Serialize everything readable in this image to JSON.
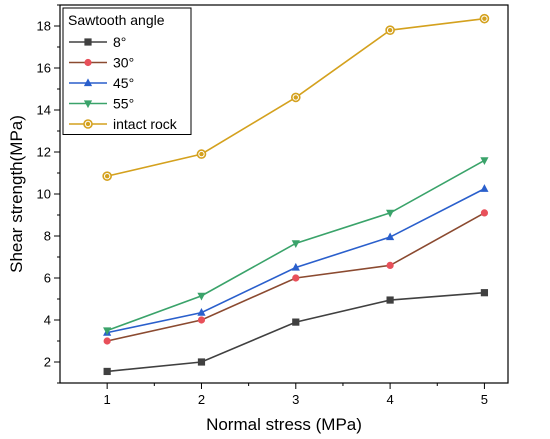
{
  "chart_data": {
    "type": "line",
    "xlabel": "Normal stress (MPa)",
    "ylabel": "Shear strength(MPa)",
    "x": [
      1,
      2,
      3,
      4,
      5
    ],
    "xlim": [
      0.5,
      5.25
    ],
    "ylim": [
      1,
      19
    ],
    "x_ticks": [
      1,
      2,
      3,
      4,
      5
    ],
    "y_ticks": [
      2,
      4,
      6,
      8,
      10,
      12,
      14,
      16,
      18
    ],
    "grid": false,
    "legend_title": "Sawtooth angle",
    "legend_position": "top-left",
    "series": [
      {
        "name": "8°",
        "color": "#404040",
        "marker": "square",
        "values": [
          1.55,
          2.0,
          3.9,
          4.95,
          5.3
        ]
      },
      {
        "name": "30°",
        "color": "#8b4a30",
        "marker_color": "#e8505a",
        "marker": "circle",
        "values": [
          3.0,
          4.0,
          6.0,
          6.6,
          9.1
        ]
      },
      {
        "name": "45°",
        "color": "#2a5fcc",
        "marker": "triangle-up",
        "values": [
          3.4,
          4.35,
          6.5,
          7.95,
          10.25
        ]
      },
      {
        "name": "55°",
        "color": "#3aa36a",
        "marker": "triangle-down",
        "values": [
          3.5,
          5.15,
          7.65,
          9.1,
          11.6
        ]
      },
      {
        "name": "intact rock",
        "color": "#d4a11e",
        "marker": "circle-open",
        "values": [
          10.85,
          11.9,
          14.6,
          17.8,
          18.35
        ]
      }
    ]
  }
}
